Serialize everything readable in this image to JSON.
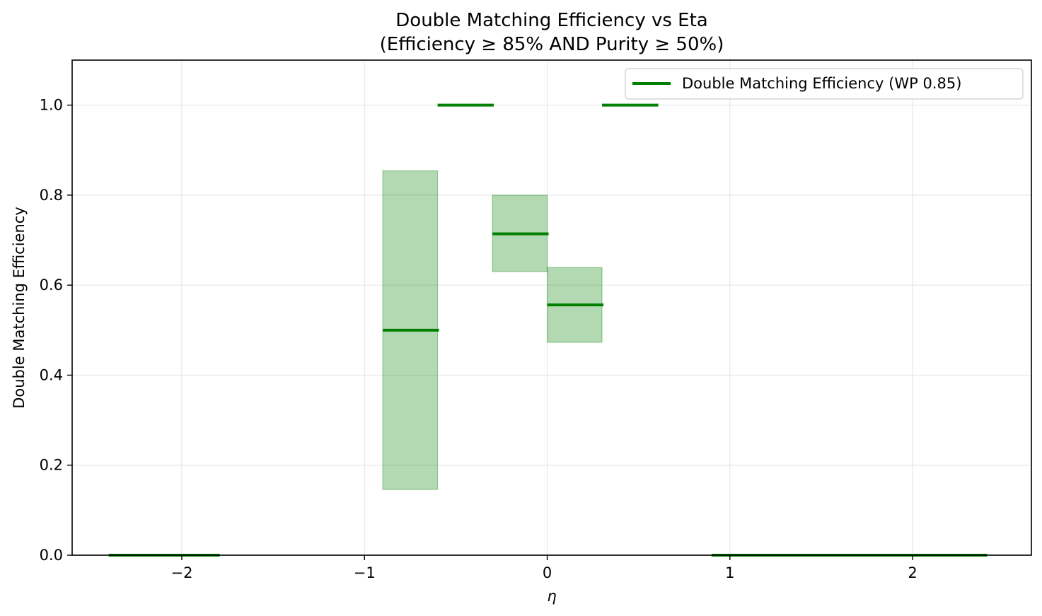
{
  "chart_data": {
    "type": "line",
    "title": "Double Matching Efficiency vs Eta",
    "subtitle": "(Efficiency ≥ 85% AND Purity ≥ 50%)",
    "xlabel": "η",
    "ylabel": "Double Matching Efficiency",
    "xlim": [
      -2.6,
      2.65
    ],
    "ylim": [
      0.0,
      1.1
    ],
    "xticks": [
      -2,
      -1,
      0,
      1,
      2
    ],
    "xtick_labels": [
      "−2",
      "−1",
      "0",
      "1",
      "2"
    ],
    "yticks": [
      0.0,
      0.2,
      0.4,
      0.6,
      0.8,
      1.0
    ],
    "ytick_labels": [
      "0.0",
      "0.2",
      "0.4",
      "0.6",
      "0.8",
      "1.0"
    ],
    "grid": true,
    "legend_position": "top-right",
    "colors": {
      "line": "#008000",
      "band": "#008000"
    },
    "series": [
      {
        "name": "Double Matching Efficiency (WP 0.85)",
        "bins": [
          {
            "x_low": -2.4,
            "x_high": -2.1,
            "value": 0.0
          },
          {
            "x_low": -2.1,
            "x_high": -1.8,
            "value": 0.0
          },
          {
            "x_low": -0.9,
            "x_high": -0.6,
            "value": 0.5,
            "err_low": 0.146,
            "err_high": 0.854
          },
          {
            "x_low": -0.6,
            "x_high": -0.3,
            "value": 1.0
          },
          {
            "x_low": -0.3,
            "x_high": 0.0,
            "value": 0.714,
            "err_low": 0.63,
            "err_high": 0.8
          },
          {
            "x_low": 0.0,
            "x_high": 0.3,
            "value": 0.556,
            "err_low": 0.473,
            "err_high": 0.639
          },
          {
            "x_low": 0.3,
            "x_high": 0.6,
            "value": 1.0
          },
          {
            "x_low": 0.9,
            "x_high": 1.2,
            "value": 0.0
          },
          {
            "x_low": 1.2,
            "x_high": 1.5,
            "value": 0.0
          },
          {
            "x_low": 1.5,
            "x_high": 1.8,
            "value": 0.0
          },
          {
            "x_low": 1.8,
            "x_high": 2.1,
            "value": 0.0
          },
          {
            "x_low": 2.1,
            "x_high": 2.4,
            "value": 0.0
          }
        ]
      }
    ]
  }
}
